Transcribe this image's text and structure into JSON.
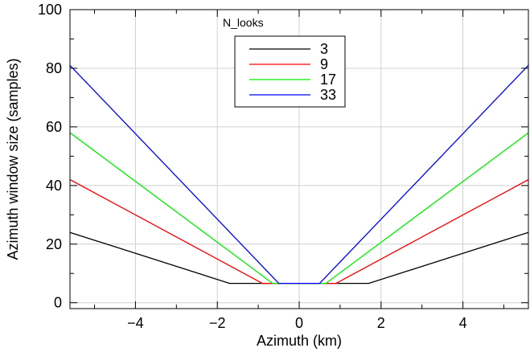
{
  "chart_data": {
    "type": "line",
    "title": "",
    "xlabel": "Azimuth (km)",
    "ylabel": "Azimuth window size (samples)",
    "xlim": [
      -5.6,
      5.6
    ],
    "ylim": [
      -2,
      100
    ],
    "xticks": [
      -4,
      -2,
      0,
      2,
      4
    ],
    "xtick_labels": [
      "−4",
      "−2",
      "0",
      "2",
      "4"
    ],
    "yticks": [
      0,
      20,
      40,
      60,
      80,
      100
    ],
    "ytick_labels": [
      "0",
      "20",
      "40",
      "60",
      "80",
      "100"
    ],
    "grid": true,
    "legend": {
      "title": "N_looks",
      "placement": "top-center"
    },
    "series": [
      {
        "name": "3",
        "color": "#000000",
        "points": [
          [
            -5.6,
            24
          ],
          [
            -1.7,
            6.6
          ],
          [
            1.7,
            6.6
          ],
          [
            5.6,
            24
          ]
        ]
      },
      {
        "name": "9",
        "color": "#ff0000",
        "points": [
          [
            -5.6,
            42
          ],
          [
            -0.9,
            6.6
          ],
          [
            0.9,
            6.6
          ],
          [
            5.6,
            42
          ]
        ]
      },
      {
        "name": "17",
        "color": "#00ee00",
        "points": [
          [
            -5.6,
            58
          ],
          [
            -0.65,
            6.6
          ],
          [
            0.65,
            6.6
          ],
          [
            5.6,
            58
          ]
        ]
      },
      {
        "name": "33",
        "color": "#0000ff",
        "points": [
          [
            -5.6,
            81
          ],
          [
            -0.5,
            6.6
          ],
          [
            0.5,
            6.6
          ],
          [
            5.6,
            81
          ]
        ]
      }
    ]
  }
}
